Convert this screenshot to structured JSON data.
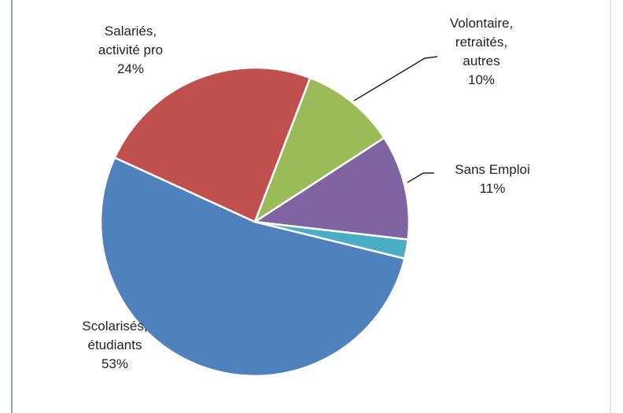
{
  "chart_data": {
    "type": "pie",
    "categories": [
      "Volontaire,\nretraités,\nautres",
      "Sans Emploi",
      null,
      "Scolarisés,\nétudiants",
      "Salariés,\nactivité pro"
    ],
    "values": [
      10,
      11,
      2,
      53,
      24
    ],
    "value_labels": [
      "10%",
      "11%",
      null,
      "53%",
      "24%"
    ],
    "colors": [
      "#9bbb59",
      "#8064a2",
      "#4bacc6",
      "#4f81bd",
      "#c0504d"
    ]
  }
}
